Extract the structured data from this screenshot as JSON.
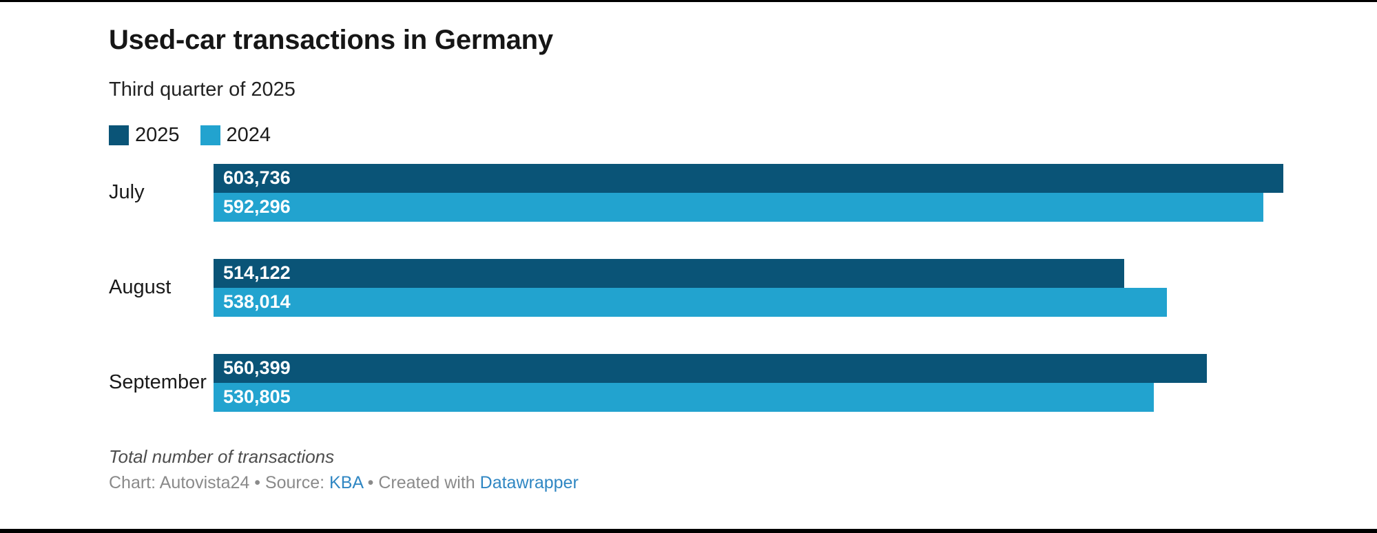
{
  "header": {
    "title": "Used-car transactions in Germany",
    "subtitle": "Third quarter of 2025"
  },
  "legend": [
    {
      "label": "2025",
      "color": "#0a5477"
    },
    {
      "label": "2024",
      "color": "#22a3cf"
    }
  ],
  "chart_data": {
    "type": "bar",
    "orientation": "horizontal",
    "title": "Used-car transactions in Germany",
    "subtitle": "Third quarter of 2025",
    "categories": [
      "July",
      "August",
      "September"
    ],
    "series": [
      {
        "name": "2025",
        "color": "#0a5477",
        "values": [
          603736,
          514122,
          560399
        ],
        "labels": [
          "603,736",
          "514,122",
          "560,399"
        ]
      },
      {
        "name": "2024",
        "color": "#22a3cf",
        "values": [
          592296,
          538014,
          530805
        ],
        "labels": [
          "592,296",
          "538,014",
          "530,805"
        ]
      }
    ],
    "value_axis": {
      "min": 0,
      "max": 603736,
      "ticks_visible": false
    },
    "grid": false,
    "legend_position": "top",
    "value_labels": "inside-start",
    "value_label_color": "#ffffff"
  },
  "footer": {
    "notes": "Total number of transactions",
    "byline": [
      {
        "text": "Chart: Autovista24 • Source: ",
        "link": false
      },
      {
        "text": "KBA",
        "link": true
      },
      {
        "text": " • Created with ",
        "link": false
      },
      {
        "text": "Datawrapper",
        "link": true
      }
    ],
    "link_color": "#3087c3"
  }
}
